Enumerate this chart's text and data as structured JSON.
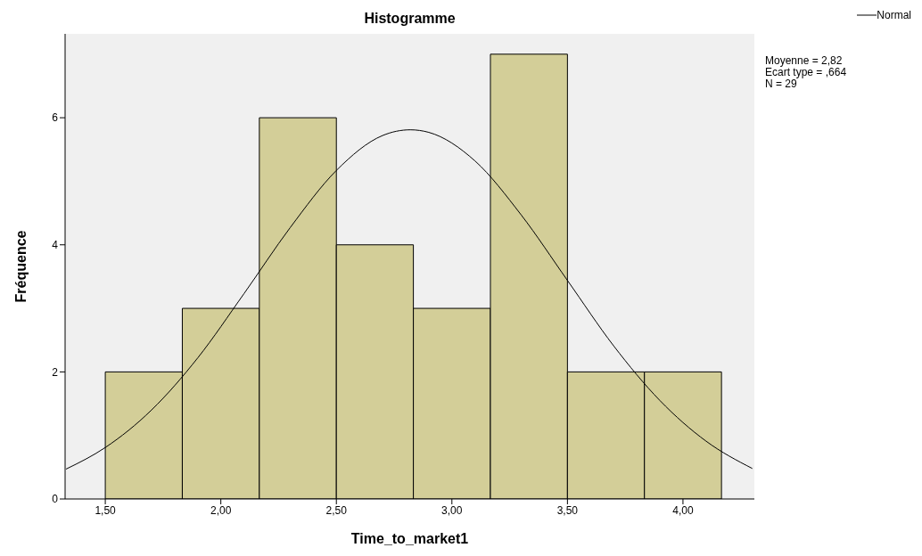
{
  "chart_data": {
    "type": "histogram",
    "title": "Histogramme",
    "xlabel": "Time_to_market1",
    "ylabel": "Fréquence",
    "bins": [
      1.5,
      1.8333,
      2.1667,
      2.5,
      2.8333,
      3.1667,
      3.5,
      3.8333,
      4.1667
    ],
    "values": [
      2,
      3,
      6,
      4,
      3,
      7,
      2,
      2
    ],
    "color": "#d3ce98",
    "series": [
      {
        "type": "line",
        "name": "Normal",
        "color": "#000000",
        "x": [
          1.33,
          1.5,
          1.7,
          1.9,
          2.1,
          2.3,
          2.5,
          2.7,
          2.82,
          2.9,
          3.1,
          3.3,
          3.5,
          3.7,
          3.9,
          4.1,
          4.3
        ],
        "values": [
          0.47,
          0.81,
          1.4,
          2.22,
          3.23,
          4.27,
          5.17,
          5.72,
          5.81,
          5.77,
          5.32,
          4.47,
          3.44,
          2.41,
          1.55,
          0.91,
          0.48
        ]
      }
    ],
    "xlim": [
      1.326,
      4.309
    ],
    "xticks": [
      {
        "value": 1.5,
        "label": "1,50"
      },
      {
        "value": 2,
        "label": "2,00"
      },
      {
        "value": 2.5,
        "label": "2,50"
      },
      {
        "value": 3,
        "label": "3,00"
      },
      {
        "value": 3.5,
        "label": "3,50"
      },
      {
        "value": 4,
        "label": "4,00"
      }
    ],
    "ylim": [
      0,
      7.32
    ],
    "yticks": [
      0,
      2,
      4,
      6
    ],
    "grid": false,
    "legend": "top right",
    "marker": "none",
    "line_style": "solid",
    "annotations": [
      "Moyenne = 2,82",
      "Ecart type = ,664",
      "N = 29"
    ]
  }
}
